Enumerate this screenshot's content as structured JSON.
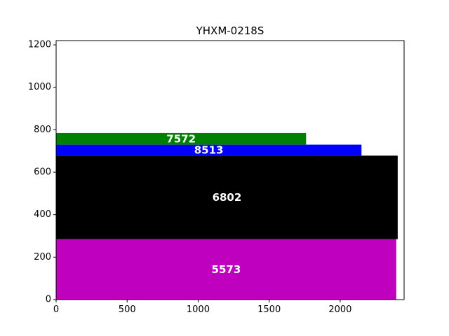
{
  "chart_data": {
    "type": "bar",
    "orientation": "horizontal",
    "layout": "variable-height stacked rectangles",
    "title": "YHXM-0218S",
    "xlabel": "",
    "ylabel": "",
    "xlim": [
      0,
      2450
    ],
    "ylim": [
      0,
      1220
    ],
    "x_ticks": [
      0,
      500,
      1000,
      1500,
      2000
    ],
    "y_ticks": [
      0,
      200,
      400,
      600,
      800,
      1000,
      1200
    ],
    "grid": false,
    "legend": "none",
    "bars": [
      {
        "value_label": "5573",
        "length": 2395,
        "y_start": 0,
        "y_end": 285,
        "color": "#bf00bf"
      },
      {
        "value_label": "6802",
        "length": 2405,
        "y_start": 285,
        "y_end": 678,
        "color": "#000000"
      },
      {
        "value_label": "8513",
        "length": 2150,
        "y_start": 678,
        "y_end": 730,
        "color": "#0000ff"
      },
      {
        "value_label": "7572",
        "length": 1760,
        "y_start": 730,
        "y_end": 785,
        "color": "#008000"
      }
    ]
  }
}
